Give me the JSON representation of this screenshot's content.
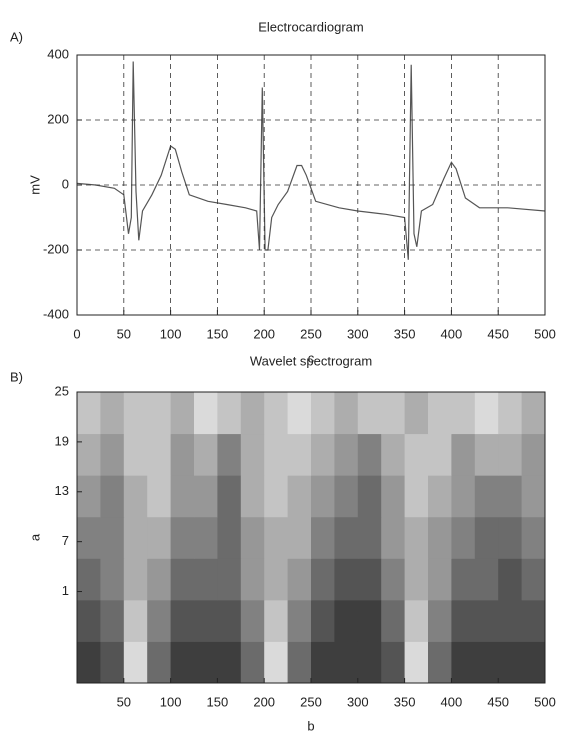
{
  "chart_data": [
    {
      "type": "line",
      "panel_label": "A)",
      "title": "Electrocardiogram",
      "xlabel": "c",
      "ylabel": "mV",
      "color": "#555555",
      "grid": true,
      "x": [
        0,
        20,
        40,
        50,
        55,
        58,
        60,
        63,
        66,
        70,
        80,
        90,
        100,
        105,
        112,
        120,
        140,
        160,
        180,
        192,
        195,
        198,
        201,
        204,
        208,
        215,
        225,
        235,
        240,
        245,
        255,
        280,
        300,
        330,
        350,
        354,
        357,
        360,
        363,
        368,
        380,
        392,
        400,
        405,
        415,
        430,
        460,
        500
      ],
      "values": [
        5,
        0,
        -10,
        -30,
        -150,
        -100,
        380,
        -20,
        -170,
        -80,
        -30,
        30,
        120,
        110,
        40,
        -30,
        -50,
        -60,
        -70,
        -80,
        -200,
        300,
        -200,
        -200,
        -100,
        -60,
        -20,
        60,
        60,
        30,
        -50,
        -70,
        -80,
        -90,
        -100,
        -230,
        370,
        -150,
        -190,
        -80,
        -60,
        20,
        70,
        50,
        -40,
        -70,
        -70,
        -80
      ],
      "xlim": [
        0,
        500
      ],
      "xticks": [
        0,
        50,
        100,
        150,
        200,
        250,
        300,
        350,
        400,
        450,
        500
      ],
      "ylim": [
        -400,
        400
      ],
      "yticks": [
        -400,
        -200,
        0,
        200,
        400
      ]
    },
    {
      "type": "heatmap",
      "panel_label": "B)",
      "title": "Wavelet spectrogram",
      "xlabel": "b",
      "ylabel": "a",
      "grid": false,
      "xbins": [
        0,
        25,
        50,
        75,
        100,
        125,
        150,
        175,
        200,
        225,
        250,
        275,
        300,
        325,
        350,
        375,
        400,
        425,
        450,
        475,
        500
      ],
      "ybins": [
        -10,
        -5,
        0,
        5,
        10,
        15,
        20,
        25
      ],
      "values": [
        [
          1,
          2,
          8,
          3,
          1,
          1,
          1,
          3,
          8,
          3,
          1,
          1,
          1,
          2,
          8,
          3,
          1,
          1,
          1,
          1
        ],
        [
          2,
          3,
          7,
          4,
          2,
          2,
          2,
          4,
          7,
          4,
          2,
          1,
          1,
          3,
          7,
          4,
          2,
          2,
          2,
          2
        ],
        [
          3,
          4,
          6,
          5,
          3,
          3,
          3,
          5,
          6,
          5,
          3,
          2,
          2,
          4,
          6,
          5,
          3,
          3,
          2,
          3
        ],
        [
          4,
          4,
          6,
          6,
          4,
          4,
          3,
          5,
          6,
          6,
          4,
          3,
          3,
          5,
          6,
          5,
          4,
          3,
          3,
          4
        ],
        [
          5,
          4,
          6,
          7,
          5,
          5,
          3,
          6,
          7,
          6,
          5,
          4,
          3,
          5,
          7,
          6,
          5,
          4,
          4,
          5
        ],
        [
          6,
          5,
          7,
          7,
          5,
          6,
          4,
          6,
          7,
          7,
          6,
          5,
          4,
          6,
          7,
          7,
          5,
          6,
          6,
          5
        ],
        [
          7,
          6,
          7,
          7,
          6,
          8,
          7,
          6,
          7,
          8,
          7,
          6,
          7,
          7,
          6,
          7,
          7,
          8,
          7,
          6
        ]
      ],
      "xlim": [
        0,
        500
      ],
      "xticks": [
        50,
        100,
        150,
        200,
        250,
        300,
        350,
        400,
        450,
        500
      ],
      "ylim": [
        -10,
        25
      ],
      "yticks": [
        25,
        19,
        13,
        7,
        1
      ]
    }
  ]
}
